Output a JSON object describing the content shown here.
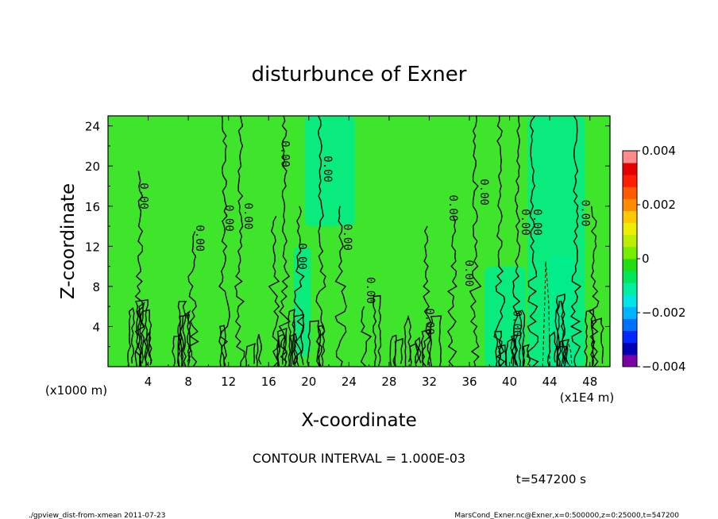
{
  "chart_data": {
    "type": "heatmap",
    "title": "disturbunce of Exner",
    "xlabel": "X-coordinate",
    "ylabel": "Z-coordinate",
    "x_unit_left": "(x1000 m)",
    "x_unit_right": "(x1E4 m)",
    "xlim": [
      0,
      50
    ],
    "ylim": [
      0,
      25
    ],
    "x_ticks": [
      "4",
      "8",
      "12",
      "16",
      "20",
      "24",
      "28",
      "32",
      "36",
      "40",
      "44",
      "48"
    ],
    "x_tick_values": [
      4,
      8,
      12,
      16,
      20,
      24,
      28,
      32,
      36,
      40,
      44,
      48
    ],
    "y_ticks": [
      "4",
      "8",
      "12",
      "16",
      "20",
      "24"
    ],
    "y_tick_values": [
      4,
      8,
      12,
      16,
      20,
      24
    ],
    "colorbar": {
      "min": -0.004,
      "max": 0.004,
      "tick_labels": [
        "0.004",
        "0.002",
        "0",
        "−0.002",
        "−0.004"
      ],
      "tick_values": [
        0.004,
        0.002,
        0,
        -0.002,
        -0.004
      ],
      "colors": [
        "#7a00a8",
        "#0000b4",
        "#0028ff",
        "#0070ff",
        "#00b4ff",
        "#00e6e6",
        "#00f0a0",
        "#00e85a",
        "#22dd11",
        "#77ee00",
        "#bbee00",
        "#eeee00",
        "#ffc800",
        "#ff8c00",
        "#ff5a00",
        "#ff1e00",
        "#e60000",
        "#ff8c8c"
      ]
    },
    "contour_interval": "CONTOUR INTERVAL = 1.000E-03",
    "contour_labels": [
      "0.00"
    ],
    "background_value_color": "#3fe52a",
    "negative_region_color": "#00ec8c",
    "grid": false
  },
  "annotations": {
    "time": "t=547200 s",
    "footer_left": "./gpview_dist-from-xmean  2011-07-23",
    "footer_right": "MarsCond_Exner.nc@Exner,x=0:500000,z=0:25000,t=547200"
  }
}
